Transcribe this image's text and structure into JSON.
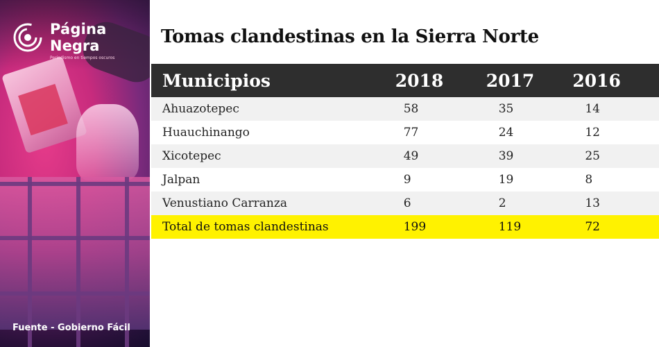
{
  "logo": {
    "line1": "Página",
    "line2": "Negra",
    "tagline": "Periodismo en tiempos oscuros"
  },
  "source": "Fuente - Gobierno Fácil",
  "colors": {
    "header_bg": "#2e2e2e",
    "total_row": "#fff200",
    "stripe": "#f1f1f1",
    "photo_tint": "#c72b7d"
  },
  "chart_data": {
    "type": "table",
    "title": "Tomas clandestinas en la Sierra Norte",
    "columns": [
      "Municipios",
      "2018",
      "2017",
      "2016"
    ],
    "rows": [
      [
        "Ahuazotepec",
        58,
        35,
        14
      ],
      [
        "Huauchinango",
        77,
        24,
        12
      ],
      [
        "Xicotepec",
        49,
        39,
        25
      ],
      [
        "Jalpan",
        9,
        19,
        8
      ],
      [
        "Venustiano Carranza",
        6,
        2,
        13
      ]
    ],
    "total": [
      "Total de tomas clandestinas",
      199,
      119,
      72
    ]
  }
}
